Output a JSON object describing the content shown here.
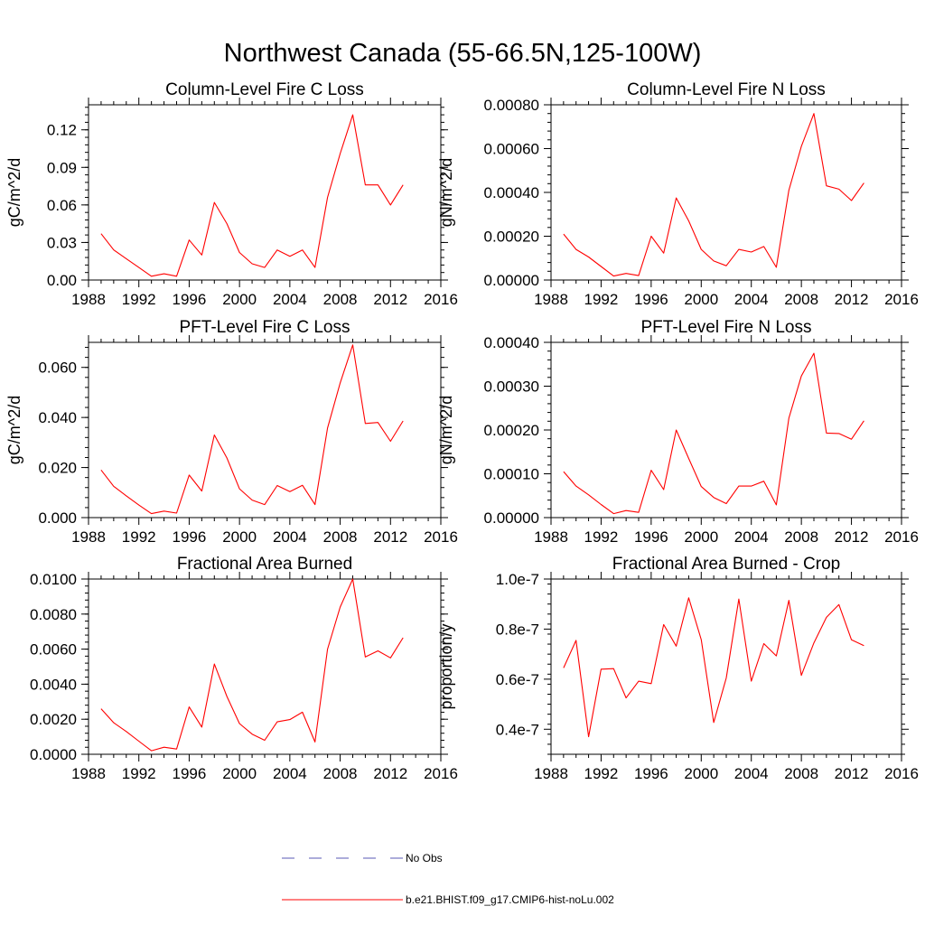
{
  "figure_title": "Northwest Canada (55-66.5N,125-100W)",
  "legend": {
    "entries": [
      {
        "label": "No Obs",
        "color": "#5a5ab4",
        "style": "dashed"
      },
      {
        "label": "b.e21.BHIST.f09_g17.CMIP6-hist-noLu.002",
        "color": "#ff0000",
        "style": "solid"
      }
    ]
  },
  "chart_data": [
    {
      "type": "line",
      "title": "Column-Level Fire C Loss",
      "xlabel": "",
      "ylabel": "gC/m^2/d",
      "xlim": [
        1988,
        2016
      ],
      "ylim": [
        0,
        0.14
      ],
      "xticks": [
        "1988",
        "1992",
        "1996",
        "2000",
        "2004",
        "2008",
        "2012",
        "2016"
      ],
      "yticks": [
        "0.00",
        "0.03",
        "0.06",
        "0.09",
        "0.12"
      ],
      "x": [
        1989,
        1990,
        1991,
        1992,
        1993,
        1994,
        1995,
        1996,
        1997,
        1998,
        1999,
        2000,
        2001,
        2002,
        2003,
        2004,
        2005,
        2006,
        2007,
        2008,
        2009,
        2010,
        2011,
        2012,
        2013
      ],
      "series": [
        {
          "color": "#ff0000",
          "values": [
            0.037,
            0.024,
            0.017,
            0.01,
            0.003,
            0.005,
            0.003,
            0.032,
            0.02,
            0.062,
            0.045,
            0.022,
            0.013,
            0.01,
            0.024,
            0.019,
            0.024,
            0.01,
            0.066,
            0.101,
            0.132,
            0.076,
            0.076,
            0.06,
            0.076
          ]
        }
      ]
    },
    {
      "type": "line",
      "title": "Column-Level Fire N Loss",
      "xlabel": "",
      "ylabel": "gN/m^2/d",
      "xlim": [
        1988,
        2016
      ],
      "ylim": [
        0,
        0.0008
      ],
      "xticks": [
        "1988",
        "1992",
        "1996",
        "2000",
        "2004",
        "2008",
        "2012",
        "2016"
      ],
      "yticks": [
        "0.00000",
        "0.00020",
        "0.00040",
        "0.00060",
        "0.00080"
      ],
      "x": [
        1989,
        1990,
        1991,
        1992,
        1993,
        1994,
        1995,
        1996,
        1997,
        1998,
        1999,
        2000,
        2001,
        2002,
        2003,
        2004,
        2005,
        2006,
        2007,
        2008,
        2009,
        2010,
        2011,
        2012,
        2013
      ],
      "series": [
        {
          "color": "#ff0000",
          "values": [
            0.00021,
            0.00014,
            0.000105,
            6.2e-05,
            1.8e-05,
            3e-05,
            2e-05,
            0.0002,
            0.000123,
            0.000375,
            0.00027,
            0.00014,
            8.7e-05,
            6.5e-05,
            0.00014,
            0.000128,
            0.000153,
            5.8e-05,
            0.00041,
            0.00061,
            0.00076,
            0.00043,
            0.000415,
            0.000363,
            0.000443
          ]
        }
      ]
    },
    {
      "type": "line",
      "title": "PFT-Level Fire C Loss",
      "xlabel": "",
      "ylabel": "gC/m^2/d",
      "xlim": [
        1988,
        2016
      ],
      "ylim": [
        0,
        0.07
      ],
      "xticks": [
        "1988",
        "1992",
        "1996",
        "2000",
        "2004",
        "2008",
        "2012",
        "2016"
      ],
      "yticks": [
        "0.000",
        "0.020",
        "0.040",
        "0.060"
      ],
      "x": [
        1989,
        1990,
        1991,
        1992,
        1993,
        1994,
        1995,
        1996,
        1997,
        1998,
        1999,
        2000,
        2001,
        2002,
        2003,
        2004,
        2005,
        2006,
        2007,
        2008,
        2009,
        2010,
        2011,
        2012,
        2013
      ],
      "series": [
        {
          "color": "#ff0000",
          "values": [
            0.019,
            0.0125,
            0.0087,
            0.005,
            0.0016,
            0.0026,
            0.0018,
            0.017,
            0.0106,
            0.033,
            0.0238,
            0.0115,
            0.007,
            0.0052,
            0.0128,
            0.0104,
            0.0129,
            0.0052,
            0.0358,
            0.0538,
            0.069,
            0.0376,
            0.038,
            0.0305,
            0.0386
          ]
        }
      ]
    },
    {
      "type": "line",
      "title": "PFT-Level Fire N Loss",
      "xlabel": "",
      "ylabel": "gN/m^2/d",
      "xlim": [
        1988,
        2016
      ],
      "ylim": [
        0,
        0.0004
      ],
      "xticks": [
        "1988",
        "1992",
        "1996",
        "2000",
        "2004",
        "2008",
        "2012",
        "2016"
      ],
      "yticks": [
        "0.00000",
        "0.00010",
        "0.00020",
        "0.00030",
        "0.00040"
      ],
      "x": [
        1989,
        1990,
        1991,
        1992,
        1993,
        1994,
        1995,
        1996,
        1997,
        1998,
        1999,
        2000,
        2001,
        2002,
        2003,
        2004,
        2005,
        2006,
        2007,
        2008,
        2009,
        2010,
        2011,
        2012,
        2013
      ],
      "series": [
        {
          "color": "#ff0000",
          "values": [
            0.000105,
            7.2e-05,
            5.2e-05,
            3e-05,
            9e-06,
            1.6e-05,
            1.2e-05,
            0.000108,
            6.4e-05,
            0.0002,
            0.000135,
            7.1e-05,
            4.6e-05,
            3.2e-05,
            7.2e-05,
            7.2e-05,
            8.3e-05,
            2.9e-05,
            0.000227,
            0.000323,
            0.000375,
            0.000193,
            0.000192,
            0.000179,
            0.000221
          ]
        }
      ]
    },
    {
      "type": "line",
      "title": "Fractional Area Burned",
      "xlabel": "",
      "ylabel": "",
      "xlim": [
        1988,
        2016
      ],
      "ylim": [
        0,
        0.01
      ],
      "xticks": [
        "1988",
        "1992",
        "1996",
        "2000",
        "2004",
        "2008",
        "2012",
        "2016"
      ],
      "yticks": [
        "0.0000",
        "0.0020",
        "0.0040",
        "0.0060",
        "0.0080",
        "0.0100"
      ],
      "x": [
        1989,
        1990,
        1991,
        1992,
        1993,
        1994,
        1995,
        1996,
        1997,
        1998,
        1999,
        2000,
        2001,
        2002,
        2003,
        2004,
        2005,
        2006,
        2007,
        2008,
        2009,
        2010,
        2011,
        2012,
        2013
      ],
      "series": [
        {
          "color": "#ff0000",
          "values": [
            0.0026,
            0.0018,
            0.0013,
            0.00075,
            0.0002,
            0.0004,
            0.0003,
            0.0027,
            0.00155,
            0.00515,
            0.0033,
            0.00175,
            0.00115,
            0.0008,
            0.00185,
            0.00198,
            0.0024,
            0.0007,
            0.006,
            0.0084,
            0.01,
            0.00555,
            0.0059,
            0.0055,
            0.00665
          ]
        }
      ]
    },
    {
      "type": "line",
      "title": "Fractional Area Burned - Crop",
      "xlabel": "",
      "ylabel": "proportion/y",
      "xlim": [
        1988,
        2016
      ],
      "ylim": [
        3e-08,
        1e-07
      ],
      "xticks": [
        "1988",
        "1992",
        "1996",
        "2000",
        "2004",
        "2008",
        "2012",
        "2016"
      ],
      "yticks": [
        "0.4e-7",
        "0.6e-7",
        "0.8e-7",
        "1.0e-7"
      ],
      "x": [
        1989,
        1990,
        1991,
        1992,
        1993,
        1994,
        1995,
        1996,
        1997,
        1998,
        1999,
        2000,
        2001,
        2002,
        2003,
        2004,
        2005,
        2006,
        2007,
        2008,
        2009,
        2010,
        2011,
        2012,
        2013
      ],
      "series": [
        {
          "color": "#ff0000",
          "values": [
            6.45e-08,
            7.55e-08,
            3.7e-08,
            6.4e-08,
            6.42e-08,
            5.25e-08,
            5.92e-08,
            5.82e-08,
            8.18e-08,
            7.32e-08,
            9.25e-08,
            7.58e-08,
            4.27e-08,
            6.05e-08,
            9.2e-08,
            5.92e-08,
            7.42e-08,
            6.93e-08,
            9.15e-08,
            6.15e-08,
            7.45e-08,
            8.47e-08,
            8.98e-08,
            7.57e-08,
            7.34e-08
          ]
        }
      ]
    }
  ]
}
